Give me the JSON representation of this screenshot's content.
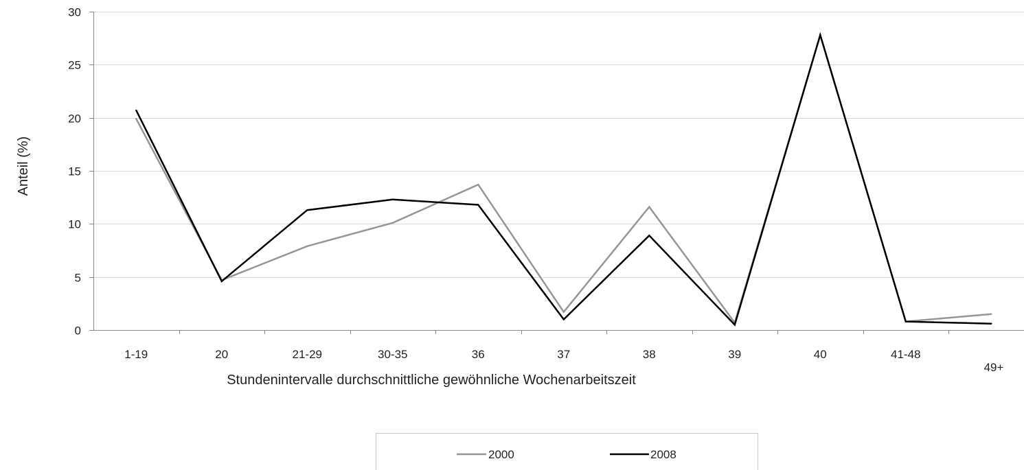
{
  "chart_data": {
    "type": "line",
    "title": "",
    "xlabel": "Stundenintervalle durchschnittliche gewöhnliche Wochenarbeitszeit",
    "ylabel": "Anteil (%)",
    "categories": [
      "1-19",
      "20",
      "21-29",
      "30-35",
      "36",
      "37",
      "38",
      "39",
      "40",
      "41-48",
      "49+"
    ],
    "ylim": [
      0,
      30
    ],
    "yticks": [
      0,
      5,
      10,
      15,
      20,
      25,
      30
    ],
    "grid": "horizontal",
    "legend_position": "bottom-center",
    "series": [
      {
        "name": "2000",
        "color": "#969696",
        "values": [
          19.9,
          4.7,
          7.9,
          10.1,
          13.7,
          1.7,
          11.6,
          0.7,
          27.8,
          0.8,
          1.5
        ]
      },
      {
        "name": "2008",
        "color": "#000000",
        "values": [
          20.7,
          4.6,
          11.3,
          12.3,
          11.8,
          1.0,
          8.9,
          0.5,
          27.8,
          0.8,
          0.6
        ]
      }
    ]
  }
}
